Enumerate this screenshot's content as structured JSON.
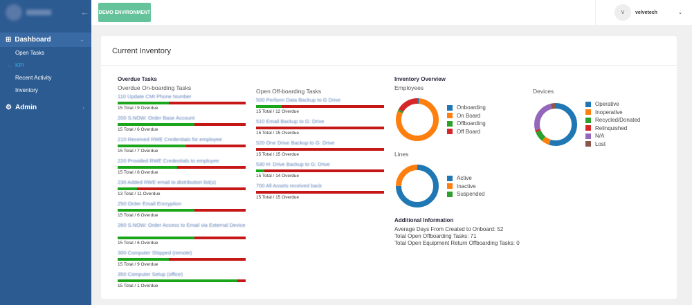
{
  "sidebar": {
    "collapse_icon": "arrow-left-icon",
    "dashboard": "Dashboard",
    "items": [
      "Open Tasks",
      "KPI",
      "Recent Activity",
      "Inventory"
    ],
    "admin": "Admin"
  },
  "topbar": {
    "demo": "DEMO ENVIRONMENT",
    "avatar": "V",
    "user": "velvetech"
  },
  "card": {
    "title": "Current Inventory"
  },
  "overdue": {
    "title": "Overdue Tasks",
    "onboarding_title": "Overdue On-boarding Tasks",
    "onboarding": [
      {
        "name": "110 Update CMI Phone Number",
        "total": 15,
        "overdue": 9,
        "caption": "15 Total / 9 Overdue"
      },
      {
        "name": "200 S.NOW: Order Base Account",
        "total": 15,
        "overdue": 6,
        "caption": "15 Total / 6 Overdue"
      },
      {
        "name": "210 Received RWE Credentials for employee",
        "total": 15,
        "overdue": 7,
        "caption": "15 Total / 7 Overdue"
      },
      {
        "name": "220 Provided RWE Credentials to employee",
        "total": 15,
        "overdue": 8,
        "caption": "15 Total / 8 Overdue"
      },
      {
        "name": "230 Added RWE email to distribution list(s)",
        "total": 13,
        "overdue": 11,
        "caption": "13 Total / 11 Overdue"
      },
      {
        "name": "250 Order Email Encryption",
        "total": 15,
        "overdue": 6,
        "caption": "15 Total / 6 Overdue"
      },
      {
        "name": "260 S.NOW: Order Access to Email via External Device",
        "total": 15,
        "overdue": 6,
        "caption": "15 Total / 6 Overdue"
      },
      {
        "name": "300 Computer Shipped (remote)",
        "total": 15,
        "overdue": 9,
        "caption": "15 Total / 9 Overdue"
      },
      {
        "name": "350 Computer Setup (office)",
        "total": 15,
        "overdue": 1,
        "caption": "15 Total / 1 Overdue"
      }
    ],
    "offboarding_title": "Open Off-boarding Tasks",
    "offboarding": [
      {
        "name": "500 Perform Data Backup to G Drive",
        "total": 15,
        "overdue": 12,
        "caption": "15 Total / 12 Overdue"
      },
      {
        "name": "510 Email Backup to G: Drive",
        "total": 15,
        "overdue": 15,
        "caption": "15 Total / 15 Overdue"
      },
      {
        "name": "520 One Drive Backup to G: Drive",
        "total": 15,
        "overdue": 15,
        "caption": "15 Total / 15 Overdue"
      },
      {
        "name": "530 H: Drive Backup to G: Drive",
        "total": 15,
        "overdue": 14,
        "caption": "15 Total / 14 Overdue"
      },
      {
        "name": "700 All Assets received back",
        "total": 15,
        "overdue": 15,
        "caption": "15 Total / 15 Overdue"
      }
    ]
  },
  "overview": {
    "title": "Inventory Overview"
  },
  "chart_data": [
    {
      "type": "pie",
      "title": "Employees",
      "categories": [
        "Onboarding",
        "On Board",
        "Offboarding",
        "Off Board"
      ],
      "values": [
        1.5,
        80,
        1.5,
        17
      ],
      "colors": [
        "#1f77b4",
        "#ff7f0e",
        "#2ca02c",
        "#d62728"
      ]
    },
    {
      "type": "pie",
      "title": "Devices",
      "categories": [
        "Operative",
        "Inoperative",
        "Recycled/Donated",
        "Relinquished",
        "N/A",
        "Lost"
      ],
      "values": [
        55,
        6,
        8,
        1.5,
        25.5,
        4
      ],
      "colors": [
        "#1f77b4",
        "#ff7f0e",
        "#2ca02c",
        "#d62728",
        "#9467bd",
        "#8c564b"
      ]
    },
    {
      "type": "pie",
      "title": "Lines",
      "categories": [
        "Active",
        "Inactive",
        "Suspended"
      ],
      "values": [
        75,
        25,
        0
      ],
      "colors": [
        "#1f77b4",
        "#ff7f0e",
        "#2ca02c"
      ]
    }
  ],
  "additional": {
    "title": "Additional Information",
    "lines": [
      "Average Days From Created to Onboard: 52",
      "Total Open Offboarding Tasks: 71",
      "Total Open Equipment Return Offboarding Tasks: 0"
    ]
  }
}
